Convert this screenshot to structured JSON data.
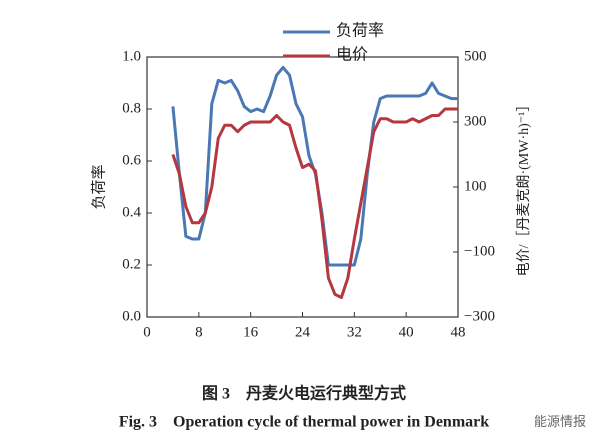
{
  "chart_data": {
    "type": "line",
    "caption_cn": "图 3　丹麦火电运行典型方式",
    "caption_en": "Fig. 3　Operation cycle of thermal power in Denmark",
    "watermark": "能源情报",
    "ylabel": "负荷率",
    "y2label": "电价/［丹麦克朗·(MW·h)⁻¹］",
    "x": [
      4,
      5,
      6,
      7,
      8,
      9,
      10,
      11,
      12,
      13,
      14,
      15,
      16,
      17,
      18,
      19,
      20,
      21,
      22,
      23,
      24,
      25,
      26,
      27,
      28,
      29,
      30,
      31,
      32,
      33,
      34,
      35,
      36,
      37,
      38,
      39,
      40,
      41,
      42,
      43,
      44,
      45,
      46,
      47,
      48
    ],
    "series": [
      {
        "name": "负荷率",
        "color": "#4a78b4",
        "axis": "y",
        "values": [
          0.81,
          0.55,
          0.31,
          0.3,
          0.3,
          0.4,
          0.82,
          0.91,
          0.9,
          0.91,
          0.87,
          0.81,
          0.79,
          0.8,
          0.79,
          0.85,
          0.93,
          0.96,
          0.93,
          0.82,
          0.77,
          0.62,
          0.55,
          0.4,
          0.2,
          0.2,
          0.2,
          0.2,
          0.2,
          0.3,
          0.55,
          0.75,
          0.84,
          0.85,
          0.85,
          0.85,
          0.85,
          0.85,
          0.85,
          0.86,
          0.9,
          0.86,
          0.85,
          0.84,
          0.84
        ]
      },
      {
        "name": "电价",
        "color": "#b5373f",
        "axis": "y2",
        "values": [
          200,
          140,
          40,
          -10,
          -10,
          20,
          100,
          250,
          290,
          290,
          270,
          290,
          300,
          300,
          300,
          300,
          320,
          300,
          290,
          220,
          160,
          170,
          150,
          0,
          -180,
          -230,
          -240,
          -180,
          -60,
          50,
          160,
          270,
          310,
          310,
          300,
          300,
          300,
          310,
          300,
          310,
          320,
          320,
          340,
          340,
          340
        ]
      }
    ],
    "xlim": [
      0,
      48
    ],
    "xticks": [
      0,
      8,
      16,
      24,
      32,
      40,
      48
    ],
    "ylim": [
      0,
      1
    ],
    "yticks": [
      {
        "value": 0,
        "label": "0.0"
      },
      0.2,
      0.4,
      0.6,
      0.8,
      {
        "value": 1,
        "label": "1.0"
      }
    ],
    "y2lim": [
      -300,
      500
    ],
    "y2ticks": [
      {
        "value": -300,
        "label": "−300"
      },
      {
        "value": -100,
        "label": "−100"
      },
      100,
      300,
      500
    ]
  }
}
